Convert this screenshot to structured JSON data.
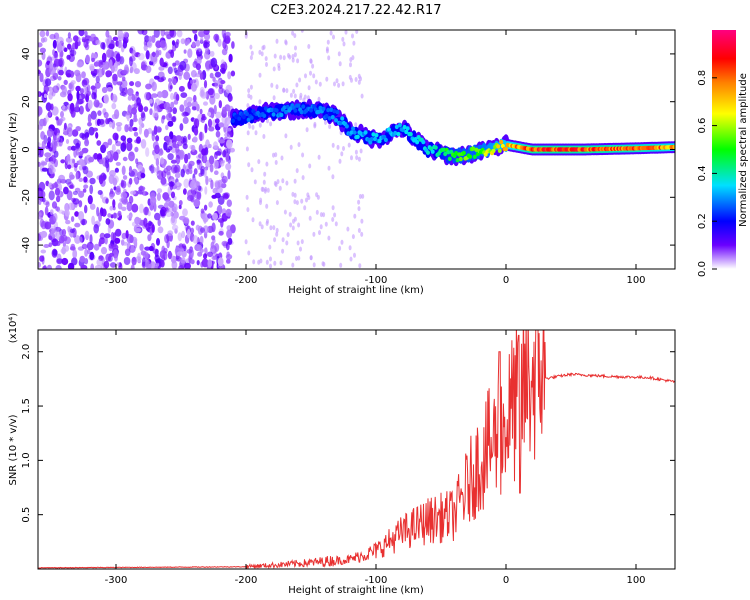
{
  "title": "C2E3.2024.217.22.42.R17",
  "chart_data": [
    {
      "type": "heatmap",
      "xlabel": "Height of straight line (km)",
      "ylabel": "Frequency (Hz)",
      "xlim": [
        -360,
        130
      ],
      "ylim": [
        -50,
        50
      ],
      "xticks": [
        -300,
        -200,
        -100,
        0,
        100
      ],
      "yticks": [
        -40,
        -20,
        0,
        20,
        40
      ],
      "grid": false,
      "colorbar": {
        "label": "Normalized spectral amplitude",
        "range": [
          0.0,
          1.0
        ],
        "ticks": [
          0.0,
          0.2,
          0.4,
          0.6,
          0.8
        ],
        "colormap": [
          "#ffffff",
          "#6a00ff",
          "#0000ff",
          "#00e0ff",
          "#00ff00",
          "#ffff00",
          "#ff8000",
          "#ff0000",
          "#ff0080"
        ]
      },
      "noise_region": {
        "x_range": [
          -360,
          -210
        ],
        "y_range": [
          -50,
          50
        ],
        "amplitude": 0.1
      },
      "ridge": [
        {
          "x": -210,
          "y": 13,
          "amp": 0.25
        },
        {
          "x": -180,
          "y": 16,
          "amp": 0.3
        },
        {
          "x": -150,
          "y": 17,
          "amp": 0.3
        },
        {
          "x": -130,
          "y": 14,
          "amp": 0.3
        },
        {
          "x": -120,
          "y": 8,
          "amp": 0.35
        },
        {
          "x": -100,
          "y": 4,
          "amp": 0.35
        },
        {
          "x": -80,
          "y": 9,
          "amp": 0.35
        },
        {
          "x": -60,
          "y": 0,
          "amp": 0.4
        },
        {
          "x": -40,
          "y": -3,
          "amp": 0.55
        },
        {
          "x": -20,
          "y": -1,
          "amp": 0.6
        },
        {
          "x": 0,
          "y": 2,
          "amp": 0.75
        },
        {
          "x": 20,
          "y": 0,
          "amp": 0.9
        },
        {
          "x": 60,
          "y": 0,
          "amp": 0.9
        },
        {
          "x": 100,
          "y": 0.5,
          "amp": 0.85
        },
        {
          "x": 130,
          "y": 1,
          "amp": 0.8
        }
      ]
    },
    {
      "type": "line",
      "xlabel": "Height of straight line (km)",
      "ylabel": "SNR (10 * v/v)",
      "y_scale_label": "(x10⁴)",
      "xlim": [
        -360,
        130
      ],
      "ylim": [
        0,
        2.2
      ],
      "xticks": [
        -300,
        -200,
        -100,
        0,
        100
      ],
      "yticks": [
        0.5,
        1.0,
        1.5,
        2.0
      ],
      "grid": false,
      "series": [
        {
          "color": "#e83030",
          "points": [
            {
              "x": -360,
              "y": 0.01
            },
            {
              "x": -200,
              "y": 0.02
            },
            {
              "x": -180,
              "y": 0.03
            },
            {
              "x": -150,
              "y": 0.05
            },
            {
              "x": -120,
              "y": 0.08
            },
            {
              "x": -100,
              "y": 0.15
            },
            {
              "x": -80,
              "y": 0.3
            },
            {
              "x": -60,
              "y": 0.4
            },
            {
              "x": -40,
              "y": 0.45
            },
            {
              "x": -20,
              "y": 0.9
            },
            {
              "x": 0,
              "y": 1.2
            },
            {
              "x": 10,
              "y": 1.45
            },
            {
              "x": 20,
              "y": 1.6
            },
            {
              "x": 30,
              "y": 1.75
            },
            {
              "x": 50,
              "y": 1.79
            },
            {
              "x": 80,
              "y": 1.77
            },
            {
              "x": 110,
              "y": 1.76
            },
            {
              "x": 130,
              "y": 1.72
            }
          ]
        }
      ]
    }
  ]
}
